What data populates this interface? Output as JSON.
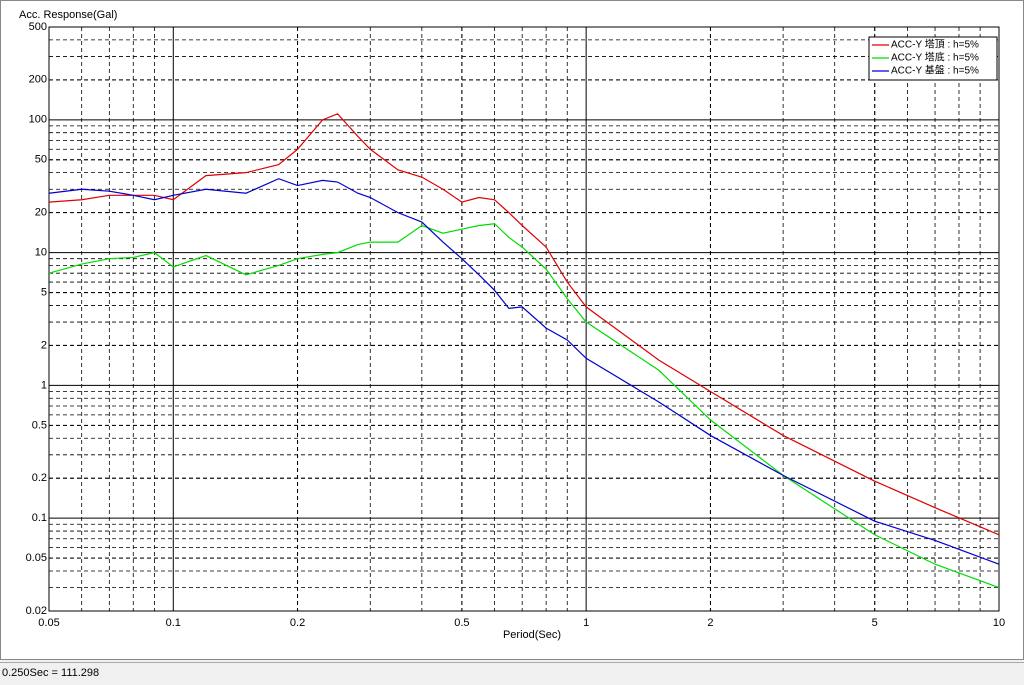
{
  "chart_data": {
    "type": "line",
    "y_label": "Acc. Response(Gal)",
    "x_label": "Period(Sec)",
    "xlog": true,
    "ylog": true,
    "grid": true,
    "minor_grid": true,
    "legend": "top-right",
    "xlim": [
      0.05,
      10
    ],
    "ylim": [
      0.02,
      500
    ],
    "xticks": [
      0.05,
      0.1,
      0.2,
      0.5,
      1,
      2,
      5,
      10
    ],
    "yticks": [
      0.02,
      0.05,
      0.1,
      0.2,
      0.5,
      1,
      2,
      5,
      10,
      20,
      50,
      100,
      200,
      500
    ],
    "x": [
      0.05,
      0.06,
      0.07,
      0.08,
      0.09,
      0.1,
      0.12,
      0.15,
      0.18,
      0.2,
      0.23,
      0.25,
      0.28,
      0.3,
      0.35,
      0.4,
      0.45,
      0.5,
      0.55,
      0.6,
      0.65,
      0.7,
      0.8,
      0.9,
      1,
      1.5,
      2,
      3,
      5,
      7,
      10
    ],
    "series": [
      {
        "name": "ACC-Y 塔頂 : h=5%",
        "color": "#e00000",
        "values": [
          24,
          25,
          27,
          27,
          27,
          25,
          38,
          40,
          46,
          60,
          100,
          111,
          75,
          60,
          42,
          37,
          30,
          24,
          26,
          25,
          20,
          16,
          11,
          6,
          3.9,
          1.55,
          0.9,
          0.42,
          0.19,
          0.12,
          0.075
        ]
      },
      {
        "name": "ACC-Y 塔底 : h=5%",
        "color": "#00dd00",
        "values": [
          7,
          8.2,
          9,
          9.2,
          10,
          7.8,
          9.5,
          6.8,
          8,
          9,
          9.7,
          10,
          11.5,
          12,
          12,
          16,
          14,
          15,
          16,
          16.5,
          13,
          11,
          7.5,
          4.5,
          3,
          1.3,
          0.55,
          0.21,
          0.075,
          0.045,
          0.03
        ]
      },
      {
        "name": "ACC-Y 基盤 : h=5%",
        "color": "#0000cc",
        "values": [
          28,
          30,
          29,
          27,
          25,
          27,
          30,
          28,
          36,
          32,
          35,
          34,
          28,
          26,
          20,
          17,
          12,
          9,
          6.8,
          5.2,
          3.8,
          3.9,
          2.7,
          2.2,
          1.6,
          0.75,
          0.42,
          0.21,
          0.095,
          0.068,
          0.045
        ]
      }
    ]
  },
  "status": "0.250Sec = 111.298"
}
